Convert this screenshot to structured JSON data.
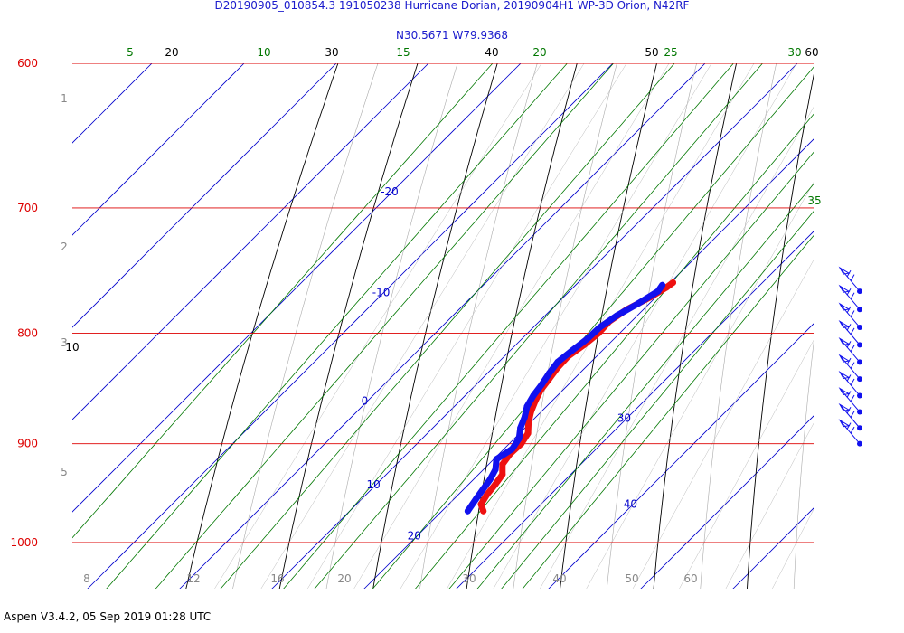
{
  "header": {
    "title_line1": "D20190905_010854.3 191050238 Hurricane Dorian, 20190904H1 WP-3D Orion, N42RF",
    "title_line2": "N30.5671 W79.9368"
  },
  "footer": {
    "text": "Aspen V3.4.2, 05 Sep 2019  01:28 UTC"
  },
  "chart_data": {
    "type": "line",
    "title": "D20190905_010854.3 191050238 Hurricane Dorian, 20190904H1 WP-3D Orion, N42RF",
    "subtitle": "N30.5671 W79.9368",
    "pressure_levels": [
      {
        "p": 600,
        "label": "600"
      },
      {
        "p": 700,
        "label": "700"
      },
      {
        "p": 800,
        "label": "800"
      },
      {
        "p": 900,
        "label": "900"
      },
      {
        "p": 1000,
        "label": "1000"
      }
    ],
    "ylim": [
      1040,
      600
    ],
    "temperature_ticks": [
      {
        "label": "-20",
        "value": -20
      },
      {
        "label": "-10",
        "value": -10
      },
      {
        "label": "0",
        "value": 0
      },
      {
        "label": "10",
        "value": 10
      },
      {
        "label": "20",
        "value": 20
      },
      {
        "label": "30",
        "value": 30
      },
      {
        "label": "40",
        "value": 40
      }
    ],
    "theta_labels": [
      "10",
      "20",
      "30",
      "40",
      "50",
      "60"
    ],
    "mixing_ratio_labels": [
      "5",
      "10",
      "15",
      "20",
      "25",
      "30",
      "35"
    ],
    "bottom_labels": [
      "8",
      "12",
      "16",
      "20",
      "30",
      "40",
      "50",
      "60"
    ],
    "height_km_labels": [
      "1",
      "2",
      "3",
      "5"
    ],
    "colors": {
      "isobar": "#dd0000",
      "isotherm": "#0000cc",
      "dry_adiabat": "#000000",
      "mixing_ratio": "#007700",
      "temperature_trace": "#ee1111",
      "dewpoint_trace": "#1111ee",
      "wind_barb": "#1111ee"
    },
    "series": [
      {
        "name": "",
        "color": "#ee1111",
        "points": [
          {
            "p": 758,
            "t": 20.3
          },
          {
            "p": 762,
            "t": 20.1
          },
          {
            "p": 770,
            "t": 19.4
          },
          {
            "p": 780,
            "t": 18.2
          },
          {
            "p": 790,
            "t": 17.6
          },
          {
            "p": 800,
            "t": 17.7
          },
          {
            "p": 810,
            "t": 17.4
          },
          {
            "p": 820,
            "t": 16.9
          },
          {
            "p": 830,
            "t": 17.0
          },
          {
            "p": 840,
            "t": 17.3
          },
          {
            "p": 850,
            "t": 17.6
          },
          {
            "p": 860,
            "t": 18.2
          },
          {
            "p": 870,
            "t": 18.9
          },
          {
            "p": 880,
            "t": 19.8
          },
          {
            "p": 890,
            "t": 20.9
          },
          {
            "p": 900,
            "t": 21.3
          },
          {
            "p": 910,
            "t": 21.2
          },
          {
            "p": 920,
            "t": 21.5
          },
          {
            "p": 930,
            "t": 22.6
          },
          {
            "p": 940,
            "t": 22.9
          },
          {
            "p": 950,
            "t": 23.1
          },
          {
            "p": 960,
            "t": 23.5
          },
          {
            "p": 967,
            "t": 24.5
          }
        ]
      },
      {
        "name": "",
        "color": "#1111ee",
        "points": [
          {
            "p": 760,
            "t": 19.4
          },
          {
            "p": 765,
            "t": 19.6
          },
          {
            "p": 775,
            "t": 18.8
          },
          {
            "p": 785,
            "t": 17.8
          },
          {
            "p": 795,
            "t": 17.2
          },
          {
            "p": 805,
            "t": 17.1
          },
          {
            "p": 815,
            "t": 16.7
          },
          {
            "p": 825,
            "t": 16.4
          },
          {
            "p": 835,
            "t": 16.7
          },
          {
            "p": 845,
            "t": 17.1
          },
          {
            "p": 855,
            "t": 17.4
          },
          {
            "p": 865,
            "t": 17.9
          },
          {
            "p": 875,
            "t": 18.8
          },
          {
            "p": 885,
            "t": 19.5
          },
          {
            "p": 895,
            "t": 20.5
          },
          {
            "p": 905,
            "t": 20.9
          },
          {
            "p": 915,
            "t": 20.3
          },
          {
            "p": 925,
            "t": 21.3
          },
          {
            "p": 935,
            "t": 21.8
          },
          {
            "p": 945,
            "t": 22.1
          },
          {
            "p": 955,
            "t": 22.4
          },
          {
            "p": 967,
            "t": 22.8
          }
        ]
      }
    ],
    "wind_barbs": [
      {
        "p": 765,
        "speed_kt": 20,
        "direction_deg": 300
      },
      {
        "p": 780,
        "speed_kt": 25,
        "direction_deg": 300
      },
      {
        "p": 795,
        "speed_kt": 25,
        "direction_deg": 295
      },
      {
        "p": 810,
        "speed_kt": 25,
        "direction_deg": 300
      },
      {
        "p": 825,
        "speed_kt": 25,
        "direction_deg": 300
      },
      {
        "p": 840,
        "speed_kt": 25,
        "direction_deg": 300
      },
      {
        "p": 855,
        "speed_kt": 25,
        "direction_deg": 295
      },
      {
        "p": 870,
        "speed_kt": 25,
        "direction_deg": 300
      },
      {
        "p": 885,
        "speed_kt": 25,
        "direction_deg": 295
      },
      {
        "p": 900,
        "speed_kt": 25,
        "direction_deg": 290
      }
    ],
    "grid": true,
    "legend": "none"
  }
}
